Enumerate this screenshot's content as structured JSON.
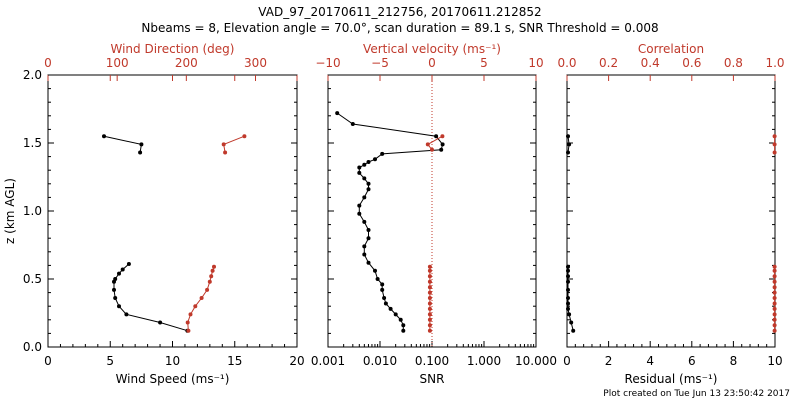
{
  "figure": {
    "title_line1": "VAD_97_20170611_212756, 20170611.212852",
    "title_line2": "Nbeams = 8, Elevation angle = 70.0°, scan duration = 89.1 s, SNR Threshold = 0.008",
    "footer": "Plot created on Tue Jun 13 23:50:42 2017",
    "colors": {
      "black": "#000000",
      "red": "#c0392b",
      "grid_red": "#e06060"
    }
  },
  "chart_data": [
    {
      "type": "line",
      "panel": "left",
      "xlabel": "Wind Speed (ms⁻¹)",
      "x2label": "Wind Direction (deg)",
      "ylabel": "z (km AGL)",
      "xlim": [
        0,
        20
      ],
      "x2lim": [
        0,
        360
      ],
      "ylim": [
        0,
        2
      ],
      "xticks": [
        "0",
        "5",
        "10",
        "15",
        "20"
      ],
      "x2ticks": [
        "0",
        "100",
        "200",
        "300"
      ],
      "yticks": [
        "0.0",
        "0.5",
        "1.0",
        "1.5",
        "2.0"
      ],
      "series": [
        {
          "axis": "bottom",
          "color": "#000000",
          "segments": [
            {
              "x": [
                4.5,
                7.5,
                7.4
              ],
              "y": [
                1.55,
                1.49,
                1.43
              ]
            },
            {
              "x": [
                11.2,
                9.0,
                6.3,
                5.7,
                5.4,
                5.3,
                5.3,
                5.4,
                5.7,
                6.0,
                6.5
              ],
              "y": [
                0.12,
                0.18,
                0.24,
                0.3,
                0.36,
                0.42,
                0.48,
                0.5,
                0.54,
                0.57,
                0.61
              ]
            }
          ]
        },
        {
          "axis": "top",
          "color": "#c0392b",
          "segments": [
            {
              "x": [
                284,
                254,
                256
              ],
              "y": [
                1.55,
                1.49,
                1.43
              ]
            },
            {
              "x": [
                203,
                202,
                206,
                213,
                222,
                230,
                234,
                236,
                238,
                240
              ],
              "y": [
                0.12,
                0.18,
                0.24,
                0.3,
                0.36,
                0.42,
                0.48,
                0.52,
                0.56,
                0.59
              ]
            }
          ]
        }
      ]
    },
    {
      "type": "line",
      "panel": "middle",
      "xlabel": "SNR",
      "x2label": "Vertical velocity (ms⁻¹)",
      "xscale": "log",
      "xlim": [
        0.001,
        10
      ],
      "x2lim": [
        -10,
        10
      ],
      "ylim": [
        0,
        2
      ],
      "xticks": [
        "0.001",
        "0.010",
        "0.100",
        "1.000",
        "10.000"
      ],
      "x2ticks": [
        "−10",
        "−5",
        "0",
        "5",
        "10"
      ],
      "reference_line_x2": 0,
      "series": [
        {
          "axis": "bottom",
          "color": "#000000",
          "segments": [
            {
              "x": [
                0.028,
                0.028,
                0.025,
                0.02,
                0.016,
                0.013,
                0.012,
                0.011,
                0.011,
                0.009,
                0.008,
                0.006,
                0.005,
                0.005,
                0.006,
                0.006,
                0.005,
                0.004,
                0.004,
                0.005,
                0.006,
                0.006,
                0.005,
                0.004,
                0.004,
                0.005,
                0.006,
                0.008,
                0.011,
                0.15,
                0.16,
                0.12,
                0.003,
                0.0015
              ],
              "y": [
                0.12,
                0.16,
                0.2,
                0.24,
                0.28,
                0.32,
                0.36,
                0.42,
                0.46,
                0.5,
                0.56,
                0.62,
                0.68,
                0.74,
                0.8,
                0.86,
                0.92,
                0.98,
                1.04,
                1.1,
                1.16,
                1.2,
                1.24,
                1.28,
                1.32,
                1.34,
                1.36,
                1.38,
                1.42,
                1.45,
                1.49,
                1.55,
                1.64,
                1.72
              ]
            }
          ]
        },
        {
          "axis": "top",
          "color": "#c0392b",
          "segments": [
            {
              "x": [
                -0.2,
                -0.2,
                -0.2,
                -0.2,
                -0.2,
                -0.2,
                -0.2,
                -0.2,
                -0.2,
                -0.2,
                -0.2,
                -0.2,
                -0.2
              ],
              "y": [
                0.12,
                0.16,
                0.2,
                0.24,
                0.28,
                0.32,
                0.36,
                0.4,
                0.44,
                0.48,
                0.52,
                0.56,
                0.59
              ]
            },
            {
              "x": [
                0.0,
                -0.4,
                1.0
              ],
              "y": [
                1.45,
                1.49,
                1.55
              ]
            }
          ]
        }
      ]
    },
    {
      "type": "line",
      "panel": "right",
      "xlabel": "Residual (ms⁻¹)",
      "x2label": "Correlation",
      "xlim": [
        0,
        10
      ],
      "x2lim": [
        0,
        1
      ],
      "ylim": [
        0,
        2
      ],
      "xticks": [
        "0",
        "2",
        "4",
        "6",
        "8",
        "10"
      ],
      "x2ticks": [
        "0.0",
        "0.2",
        "0.4",
        "0.6",
        "0.8",
        "1.0"
      ],
      "series": [
        {
          "axis": "bottom",
          "color": "#000000",
          "segments": [
            {
              "x": [
                0.05,
                0.1,
                0.05
              ],
              "y": [
                1.43,
                1.49,
                1.55
              ]
            },
            {
              "x": [
                0.3,
                0.2,
                0.1,
                0.05,
                0.05,
                0.05,
                0.05,
                0.05,
                0.05,
                0.05,
                0.05
              ],
              "y": [
                0.12,
                0.18,
                0.24,
                0.28,
                0.32,
                0.36,
                0.42,
                0.48,
                0.52,
                0.56,
                0.59
              ]
            }
          ]
        },
        {
          "axis": "top",
          "color": "#c0392b",
          "segments": [
            {
              "x": [
                0.998,
                0.998,
                0.998
              ],
              "y": [
                1.43,
                1.49,
                1.55
              ]
            },
            {
              "x": [
                0.998,
                0.998,
                0.998,
                0.998,
                0.998,
                0.998,
                0.998,
                0.998,
                0.998,
                0.998,
                0.998,
                0.998,
                0.998
              ],
              "y": [
                0.12,
                0.16,
                0.2,
                0.24,
                0.28,
                0.32,
                0.36,
                0.4,
                0.44,
                0.48,
                0.52,
                0.56,
                0.59
              ]
            }
          ]
        }
      ]
    }
  ]
}
